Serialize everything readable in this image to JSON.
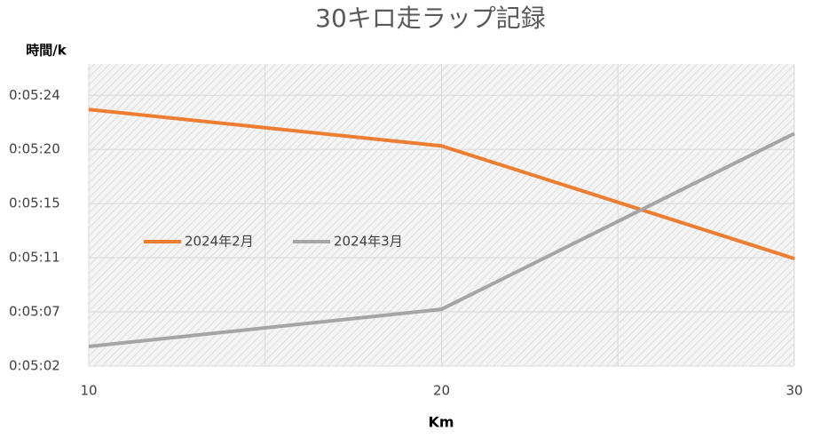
{
  "chart_data": {
    "type": "line",
    "title": "30キロ走ラップ記録",
    "y_label": "時間/k",
    "x_label": "Km",
    "x": [
      10,
      20,
      30
    ],
    "series": [
      {
        "name": "2024年2月",
        "color": "#ed7d31",
        "values": [
          322.87,
          319.96,
          310.97
        ]
      },
      {
        "name": "2024年3月",
        "color": "#a5a5a5",
        "values": [
          303.96,
          306.93,
          320.95
        ]
      }
    ],
    "xlim": [
      10,
      30
    ],
    "xticks": [
      10,
      20,
      30
    ],
    "x_gridlines": [
      10,
      15,
      20,
      25,
      30
    ],
    "ylim": [
      302.4,
      326.5
    ],
    "yticks": [
      {
        "value": 302.4,
        "label": "0:05:02"
      },
      {
        "value": 306.72,
        "label": "0:05:07"
      },
      {
        "value": 311.04,
        "label": "0:05:11"
      },
      {
        "value": 315.36,
        "label": "0:05:15"
      },
      {
        "value": 319.68,
        "label": "0:05:20"
      },
      {
        "value": 324.0,
        "label": "0:05:24"
      }
    ],
    "grid": true,
    "legend": "left"
  }
}
